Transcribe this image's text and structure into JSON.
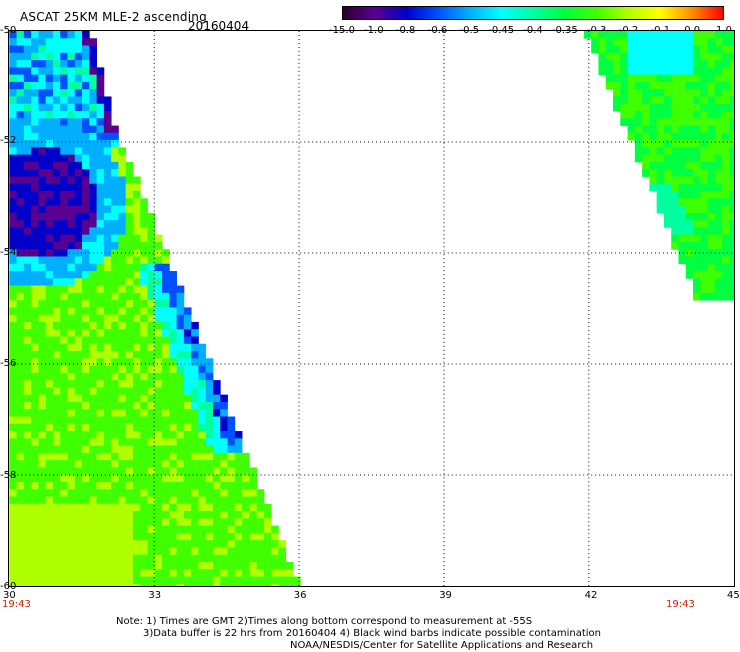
{
  "header": {
    "title": "ASCAT 25KM MLE-2 ascending",
    "date": "20160404"
  },
  "colorbar": {
    "labels": [
      "-15.0",
      "-1.0",
      "-0.8",
      "-0.6",
      "-0.5",
      "-0.45",
      "-0.4",
      "-0.35",
      "-0.3",
      "-0.2",
      "-0.1",
      "0.0",
      "1.0"
    ],
    "colors": [
      "#2a002a",
      "#5a0090",
      "#0000c8",
      "#0050ff",
      "#00b0ff",
      "#00ffff",
      "#00ffa0",
      "#00ff40",
      "#40ff00",
      "#b0ff00",
      "#ffff00",
      "#ff9000",
      "#ff0000"
    ]
  },
  "map": {
    "lon_ticks": [
      "30",
      "33",
      "36",
      "39",
      "42",
      "45"
    ],
    "lat_ticks": [
      "-50",
      "-52",
      "-54",
      "-56",
      "-58",
      "-60"
    ],
    "times": {
      "left": "19:43",
      "right": "19:43"
    }
  },
  "notes": {
    "line1": "Note: 1) Times are GMT 2)Times along bottom correspond to measurement at -55S",
    "line2": "3)Data buffer is 22 hrs from 20160404 4) Black wind barbs indicate possible contamination",
    "line3": "NOAA/NESDIS/Center for Satellite Applications and Research"
  }
}
